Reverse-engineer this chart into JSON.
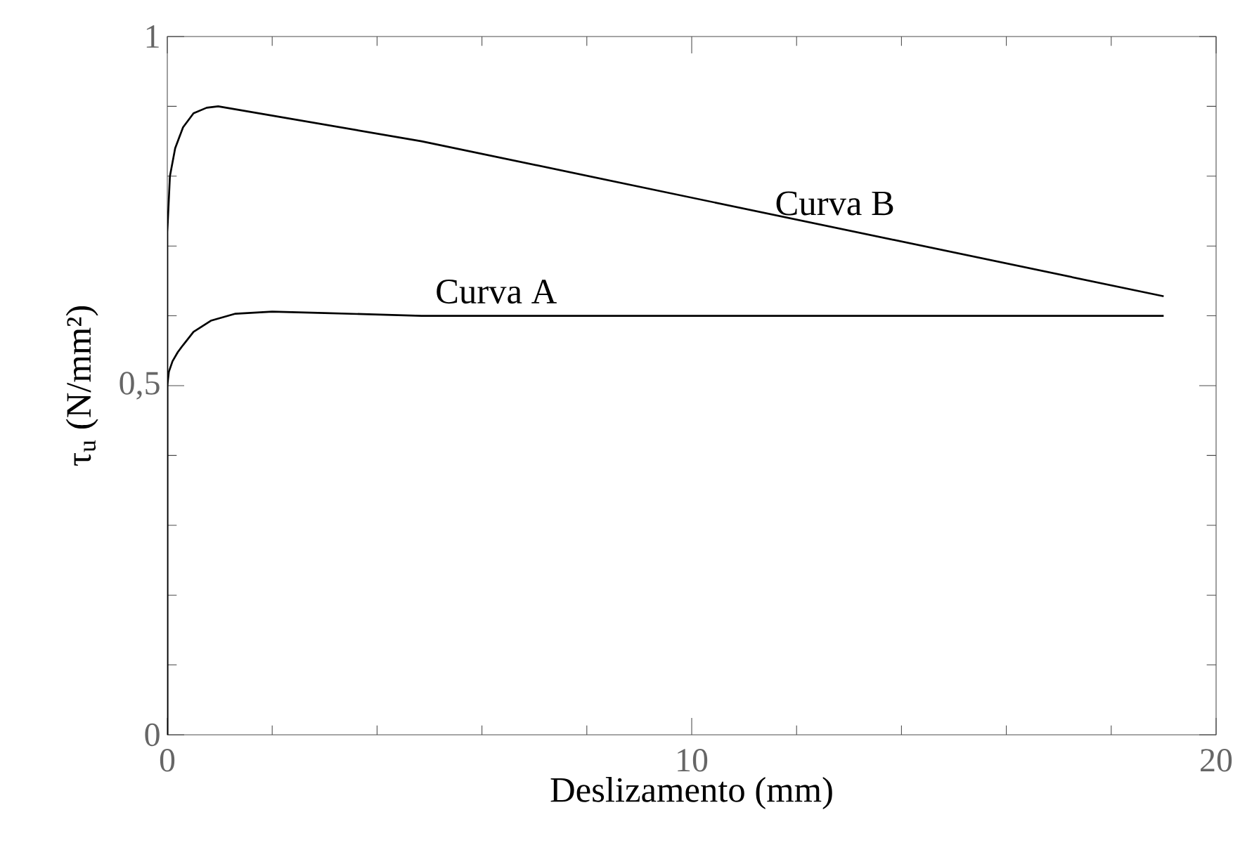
{
  "chart_data": {
    "type": "line",
    "xlabel": "Deslizamento (mm)",
    "ylabel": "τ$_{u}$  (N/mm²)",
    "xlim": [
      0,
      20
    ],
    "ylim": [
      0,
      1
    ],
    "xticks": [
      0,
      10,
      20
    ],
    "yticks": [
      0,
      {
        "value": 0.5,
        "label": "0,5"
      },
      1
    ],
    "grid": false,
    "legend": false,
    "series": [
      {
        "name": "Curva A",
        "color": "#000000",
        "x": [
          0,
          0,
          0.03,
          0.1,
          0.2,
          0.3,
          0.5,
          0.83,
          1.3,
          2.0,
          3.0,
          4.85,
          19
        ],
        "values": [
          0,
          0.5,
          0.52,
          0.535,
          0.548,
          0.558,
          0.577,
          0.593,
          0.603,
          0.606,
          0.604,
          0.6,
          0.6
        ]
      },
      {
        "name": "Curva B",
        "color": "#000000",
        "x": [
          0,
          0,
          0.05,
          0.15,
          0.3,
          0.5,
          0.75,
          0.97,
          4.85,
          19
        ],
        "values": [
          0,
          0.72,
          0.8,
          0.84,
          0.87,
          0.89,
          0.898,
          0.9,
          0.85,
          0.628
        ]
      }
    ]
  }
}
